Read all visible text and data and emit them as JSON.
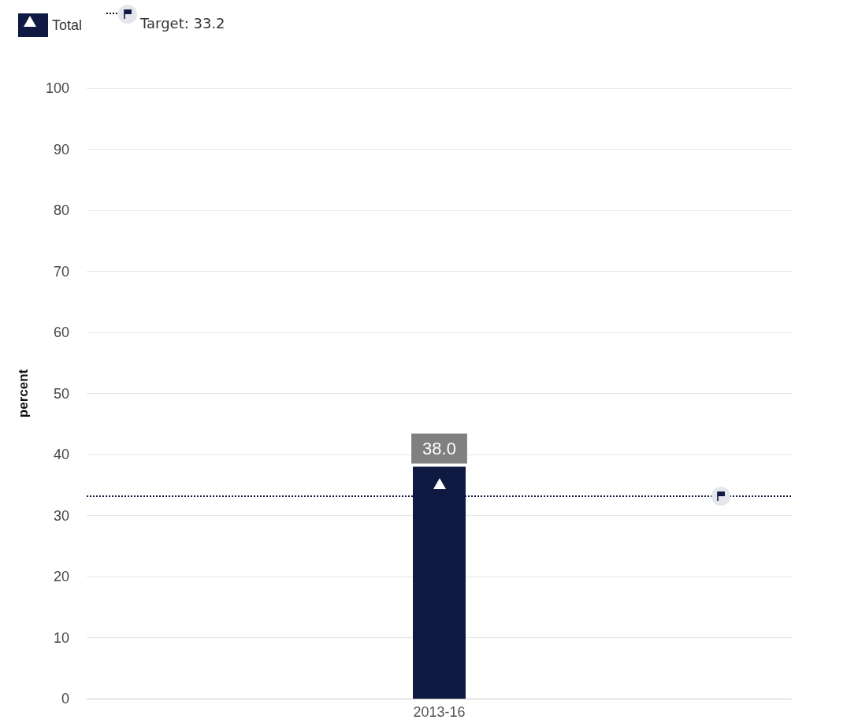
{
  "chart_data": {
    "type": "bar",
    "ylabel": "percent",
    "categories": [
      "2013-16"
    ],
    "series": [
      {
        "name": "Total",
        "color": "#0f1941",
        "values": [
          38.0
        ],
        "value_labels": [
          "38.0"
        ]
      }
    ],
    "ylim": [
      0,
      100
    ],
    "yticks": [
      0,
      10,
      20,
      30,
      40,
      50,
      60,
      70,
      80,
      90,
      100
    ],
    "ref_lines": [
      {
        "axis": "y",
        "value": 33.2,
        "label": "Target: 33.2",
        "color": "#0f1941",
        "line_style": "dotted"
      }
    ],
    "grid": "y",
    "legend": "top left"
  }
}
